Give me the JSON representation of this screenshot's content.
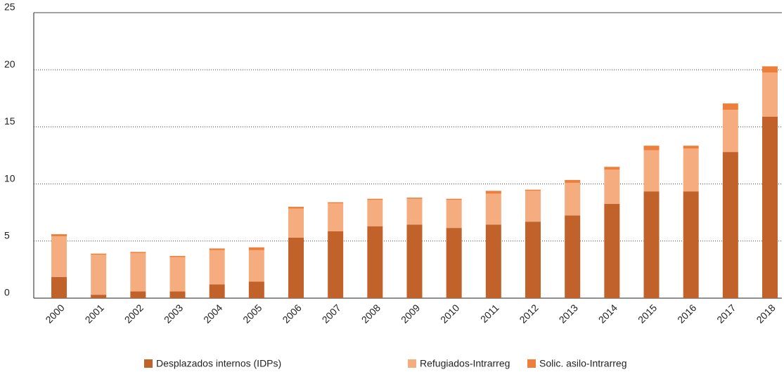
{
  "chart_data": {
    "type": "stacked_bar",
    "categories": [
      "2000",
      "2001",
      "2002",
      "2003",
      "2004",
      "2005",
      "2006",
      "2007",
      "2008",
      "2009",
      "2010",
      "2011",
      "2012",
      "2013",
      "2014",
      "2015",
      "2016",
      "2017",
      "2018"
    ],
    "series": [
      {
        "name": "Desplazados internos (IDPs)",
        "color": "#c0622a",
        "values": [
          1.85,
          0.3,
          0.6,
          0.6,
          1.2,
          1.45,
          5.3,
          5.85,
          6.3,
          6.45,
          6.15,
          6.45,
          6.7,
          7.25,
          8.25,
          9.35,
          9.35,
          12.8,
          15.9
        ]
      },
      {
        "name": "Refugiados-Intrarreg",
        "color": "#f5ad80",
        "values": [
          3.57,
          3.5,
          3.35,
          3.0,
          3.0,
          2.75,
          2.55,
          2.45,
          2.3,
          2.25,
          2.45,
          2.7,
          2.7,
          2.85,
          3.0,
          3.6,
          3.75,
          3.7,
          3.85
        ]
      },
      {
        "name": "Solic. asilo-Intrarreg",
        "color": "#ee7f3b",
        "values": [
          0.18,
          0.1,
          0.1,
          0.1,
          0.15,
          0.25,
          0.15,
          0.1,
          0.1,
          0.1,
          0.1,
          0.25,
          0.1,
          0.25,
          0.25,
          0.4,
          0.25,
          0.55,
          0.55
        ]
      }
    ],
    "ylim": [
      0,
      25
    ],
    "yticks": [
      0,
      5,
      10,
      15,
      20,
      25
    ],
    "grid": true,
    "legend": "bottom"
  }
}
